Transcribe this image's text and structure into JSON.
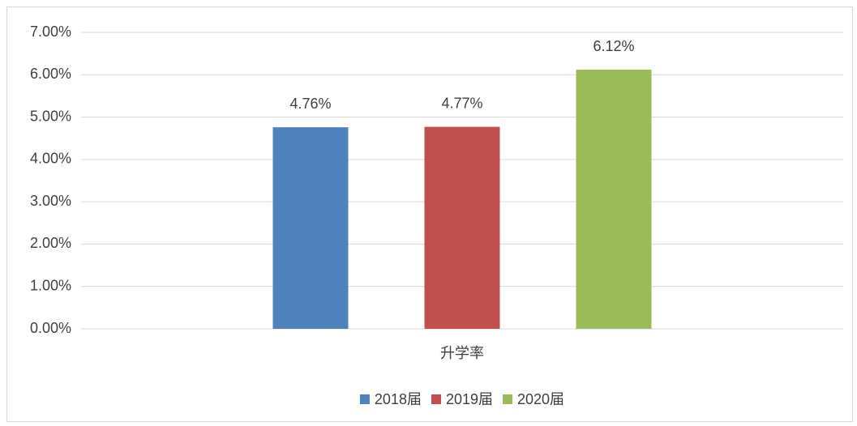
{
  "chart_data": {
    "type": "bar",
    "categories": [
      "升学率"
    ],
    "series": [
      {
        "name": "2018届",
        "color": "#4f81bd",
        "values": [
          4.76
        ],
        "value_labels": [
          "4.76%"
        ]
      },
      {
        "name": "2019届",
        "color": "#c0504d",
        "values": [
          4.77
        ],
        "value_labels": [
          "4.77%"
        ]
      },
      {
        "name": "2020届",
        "color": "#9bbb59",
        "values": [
          6.12
        ],
        "value_labels": [
          "6.12%"
        ]
      }
    ],
    "ylim": [
      0,
      7
    ],
    "yticks": [
      {
        "value": 0,
        "label": "0.00%"
      },
      {
        "value": 1,
        "label": "1.00%"
      },
      {
        "value": 2,
        "label": "2.00%"
      },
      {
        "value": 3,
        "label": "3.00%"
      },
      {
        "value": 4,
        "label": "4.00%"
      },
      {
        "value": 5,
        "label": "5.00%"
      },
      {
        "value": 6,
        "label": "6.00%"
      },
      {
        "value": 7,
        "label": "7.00%"
      }
    ],
    "grid": true,
    "legend": "bottom"
  }
}
